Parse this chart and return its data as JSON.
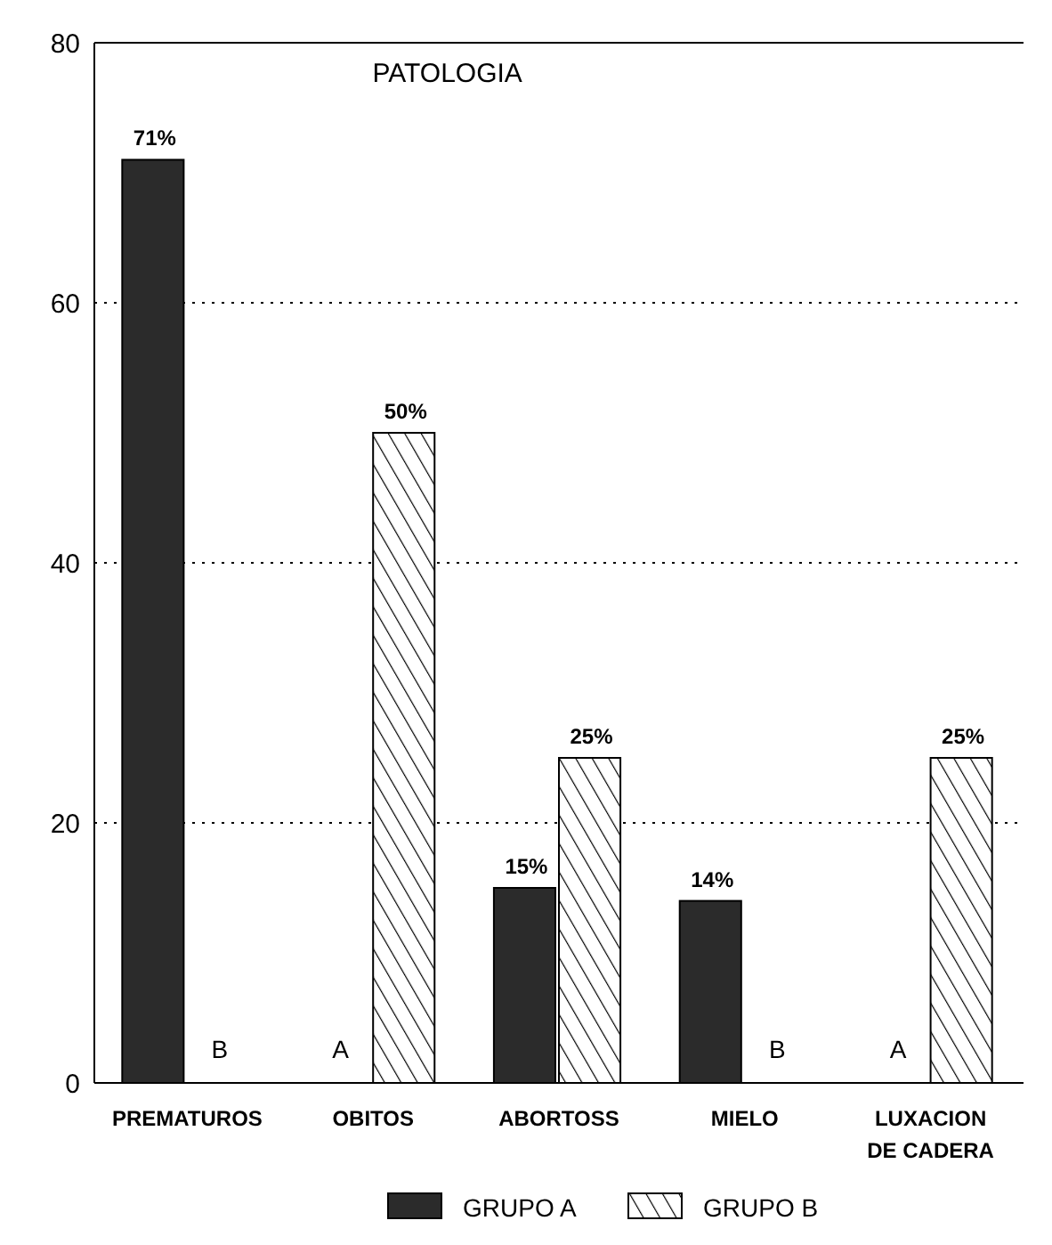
{
  "chart_data": {
    "type": "bar",
    "title": "PATOLOGIA",
    "categories": [
      "PREMATUROS",
      "OBITOS",
      "ABORTOSS",
      "MIELO",
      "LUXACION\nDE CADERA"
    ],
    "series": [
      {
        "name": "GRUPO A",
        "color": "#2b2b2b",
        "values": [
          71,
          0,
          15,
          14,
          0
        ],
        "value_labels": [
          "71%",
          null,
          "15%",
          "14%",
          null
        ]
      },
      {
        "name": "GRUPO B",
        "color": "#000000",
        "values": [
          0,
          50,
          25,
          0,
          25
        ],
        "value_labels": [
          null,
          "50%",
          "25%",
          null,
          "25%"
        ]
      }
    ],
    "annotations": [
      {
        "text": "B",
        "x": "PREMATUROS",
        "y": 0
      },
      {
        "text": "A",
        "x": "OBITOS",
        "y": 0
      },
      {
        "text": "B",
        "x": "MIELO",
        "y": 0
      },
      {
        "text": "A",
        "x": "LUXACION\nDE CADERA",
        "y": 0
      }
    ],
    "ylim": [
      0,
      80
    ],
    "yticks": [
      0,
      20,
      40,
      60,
      80
    ],
    "grid": "y",
    "legend": "bottom"
  }
}
